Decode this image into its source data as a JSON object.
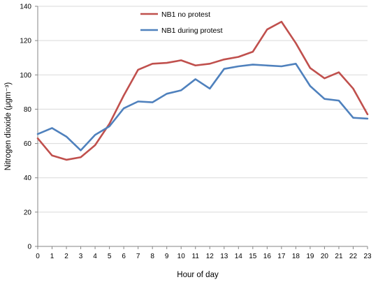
{
  "chart_data": {
    "type": "line",
    "title": "",
    "xlabel": "Hour of day",
    "ylabel": "Nitrogen dioxide (μgm⁻³)",
    "x": [
      0,
      1,
      2,
      3,
      4,
      5,
      6,
      7,
      8,
      9,
      10,
      11,
      12,
      13,
      14,
      15,
      16,
      17,
      18,
      19,
      20,
      21,
      22,
      23
    ],
    "ylim": [
      0,
      140
    ],
    "yticks": [
      0,
      20,
      40,
      60,
      80,
      100,
      120,
      140
    ],
    "grid": "horizontal",
    "legend": "top-center",
    "series": [
      {
        "name": "NB1 no protest",
        "color": "#c0504d",
        "values": [
          63,
          53,
          50.5,
          52,
          59,
          71.5,
          88,
          103,
          106.5,
          107,
          108.5,
          105.5,
          106.5,
          109,
          110.5,
          113.5,
          126.5,
          131,
          118.5,
          104,
          98,
          101.5,
          92,
          77
        ]
      },
      {
        "name": "NB1 during protest",
        "color": "#4f81bd",
        "values": [
          65.5,
          69,
          64,
          56,
          65,
          70,
          80.5,
          84.5,
          84,
          89,
          91,
          97.5,
          92,
          103.5,
          105,
          106,
          105.5,
          105,
          106.5,
          93.5,
          86,
          85,
          75,
          74.5
        ]
      }
    ]
  }
}
